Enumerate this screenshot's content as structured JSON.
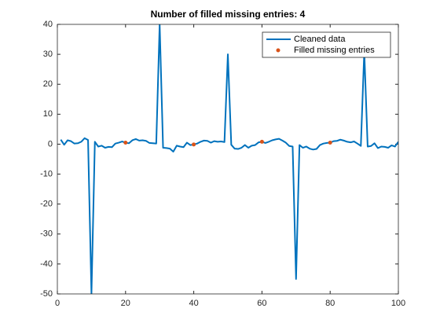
{
  "chart_data": {
    "type": "line",
    "title": "Number of filled missing entries: 4",
    "x": [
      1,
      2,
      3,
      4,
      5,
      6,
      7,
      8,
      9,
      10,
      11,
      12,
      13,
      14,
      15,
      16,
      17,
      18,
      19,
      20,
      21,
      22,
      23,
      24,
      25,
      26,
      27,
      28,
      29,
      30,
      31,
      32,
      33,
      34,
      35,
      36,
      37,
      38,
      39,
      40,
      41,
      42,
      43,
      44,
      45,
      46,
      47,
      48,
      49,
      50,
      51,
      52,
      53,
      54,
      55,
      56,
      57,
      58,
      59,
      60,
      61,
      62,
      63,
      64,
      65,
      66,
      67,
      68,
      69,
      70,
      71,
      72,
      73,
      74,
      75,
      76,
      77,
      78,
      79,
      80,
      81,
      82,
      83,
      84,
      85,
      86,
      87,
      88,
      89,
      90,
      91,
      92,
      93,
      94,
      95,
      96,
      97,
      98,
      99,
      100
    ],
    "series": [
      {
        "name": "Cleaned data",
        "color": "#0072bd",
        "mode": "line",
        "values": [
          1.5,
          -0.2,
          1.3,
          1.0,
          0.2,
          0.3,
          0.8,
          2.0,
          1.4,
          -50,
          0.8,
          -0.8,
          -0.5,
          -1.2,
          -0.9,
          -1.0,
          0.2,
          0.5,
          0.9,
          0.5,
          0.3,
          1.3,
          1.7,
          1.2,
          1.3,
          1.1,
          0.4,
          0.3,
          0.2,
          40,
          -1.2,
          -1.3,
          -1.5,
          -2.5,
          -0.5,
          -0.8,
          -1.0,
          0.5,
          -0.3,
          -0.1,
          0.2,
          0.8,
          1.2,
          1.1,
          0.5,
          1.0,
          0.8,
          0.9,
          0.7,
          30,
          -0.2,
          -1.5,
          -1.6,
          -1.2,
          -0.3,
          -1.2,
          -0.5,
          -0.3,
          0.6,
          0.8,
          0.4,
          0.8,
          1.3,
          1.6,
          1.8,
          1.2,
          0.5,
          -0.6,
          -0.8,
          -45,
          -0.3,
          -1.2,
          -0.8,
          -1.5,
          -1.8,
          -1.6,
          -0.3,
          0.2,
          0.4,
          0.5,
          1.0,
          1.1,
          1.5,
          1.2,
          0.8,
          0.6,
          0.9,
          0.2,
          -0.6,
          31,
          -0.8,
          -0.6,
          0.3,
          -1.3,
          -0.8,
          -0.9,
          -1.2,
          -0.4,
          -0.8,
          0.8
        ]
      },
      {
        "name": "Filled missing entries",
        "color": "#d95319",
        "mode": "markers",
        "x": [
          20,
          40,
          60,
          80
        ],
        "values": [
          0.5,
          -0.1,
          0.8,
          0.5
        ]
      }
    ],
    "xlim": [
      0,
      100
    ],
    "xticks": [
      0,
      20,
      40,
      60,
      80,
      100
    ],
    "ylim": [
      -50,
      40
    ],
    "yticks": [
      -50,
      -40,
      -30,
      -20,
      -10,
      0,
      10,
      20,
      30,
      40
    ],
    "legend": "northeast"
  }
}
